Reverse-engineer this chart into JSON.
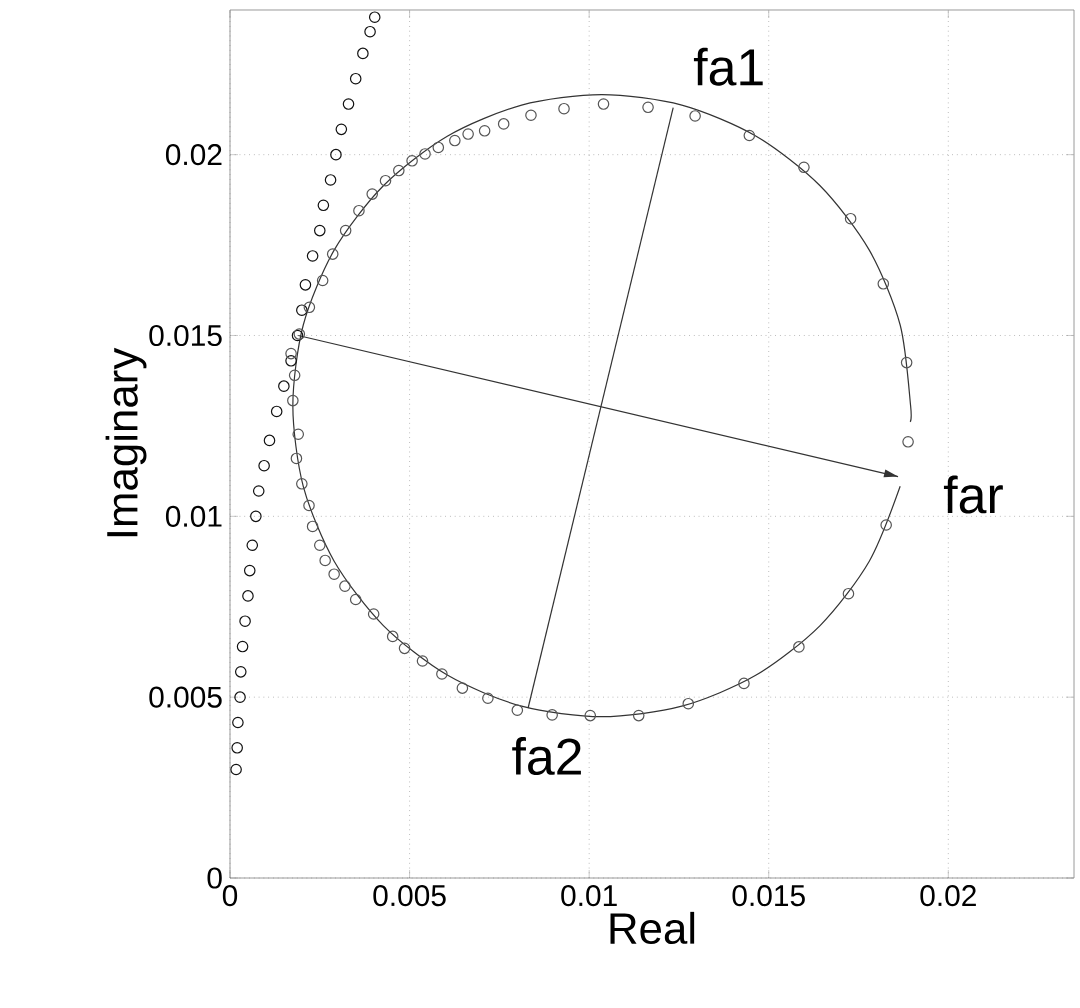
{
  "chart_data": {
    "type": "scatter",
    "xlabel": "Real",
    "ylabel": "Imaginary",
    "xlim": [
      0,
      0.0235
    ],
    "ylim": [
      0,
      0.024
    ],
    "xticks": [
      0,
      0.005,
      0.01,
      0.015,
      0.02
    ],
    "yticks": [
      0,
      0.005,
      0.01,
      0.015,
      0.02
    ],
    "grid": true,
    "series": [
      {
        "color": "#111111",
        "marker": "circle",
        "x": [
          0.00017,
          0.0002,
          0.00022,
          0.00028,
          0.0003,
          0.00035,
          0.00042,
          0.0005,
          0.00055,
          0.00062,
          0.00072,
          0.0008,
          0.00095,
          0.0011,
          0.0013,
          0.0015,
          0.0017,
          0.00188,
          0.002,
          0.0021,
          0.0023,
          0.0025,
          0.0026,
          0.0028,
          0.00295,
          0.0031,
          0.0033,
          0.0035,
          0.0037,
          0.0039,
          0.00403
        ],
        "values": [
          0.003,
          0.0036,
          0.0043,
          0.005,
          0.0057,
          0.0064,
          0.0071,
          0.0078,
          0.0085,
          0.0092,
          0.01,
          0.0107,
          0.0114,
          0.0121,
          0.0129,
          0.0136,
          0.0143,
          0.015,
          0.0157,
          0.0164,
          0.0172,
          0.0179,
          0.0186,
          0.0193,
          0.02,
          0.0207,
          0.0214,
          0.0221,
          0.0228,
          0.0234,
          0.0238
        ]
      },
      {
        "color": "#555555",
        "marker": "circle",
        "x": [
          0.0017,
          0.0018,
          0.00175,
          0.0019,
          0.00185,
          0.002,
          0.0022,
          0.0023,
          0.0025,
          0.00265,
          0.0029,
          0.0032,
          0.0035,
          0.004,
          0.00453,
          0.00486,
          0.00536,
          0.0059,
          0.00647,
          0.00718,
          0.008,
          0.00897,
          0.01003,
          0.01138,
          0.01276,
          0.01431,
          0.01584,
          0.01722,
          0.01827,
          0.01888,
          0.01884,
          0.01819,
          0.01728,
          0.01598,
          0.01446,
          0.01295,
          0.01164,
          0.0104,
          0.0093,
          0.00838,
          0.00762,
          0.00709,
          0.00663,
          0.00626,
          0.0058,
          0.00543,
          0.00507,
          0.0047,
          0.00433,
          0.00396,
          0.00359,
          0.00322,
          0.00286,
          0.00258,
          0.00221,
          0.00193
        ],
        "values": [
          0.0145,
          0.0139,
          0.0132,
          0.01227,
          0.0116,
          0.0109,
          0.0103,
          0.00972,
          0.0092,
          0.00878,
          0.0084,
          0.00807,
          0.0077,
          0.0073,
          0.00668,
          0.00635,
          0.006,
          0.00564,
          0.00525,
          0.00497,
          0.00464,
          0.00451,
          0.00449,
          0.00449,
          0.00482,
          0.00538,
          0.00639,
          0.00786,
          0.00976,
          0.01206,
          0.01425,
          0.01643,
          0.01823,
          0.01965,
          0.02053,
          0.02107,
          0.02131,
          0.0214,
          0.02127,
          0.02109,
          0.02085,
          0.02066,
          0.02057,
          0.02039,
          0.0202,
          0.02002,
          0.01983,
          0.01956,
          0.01928,
          0.01891,
          0.01845,
          0.0179,
          0.01725,
          0.01652,
          0.01578,
          0.01504
        ]
      },
      {
        "type": "line",
        "color": "#333333",
        "marker": "none",
        "line_style": "solid",
        "x": [
          0.01894,
          0.01895,
          0.01866,
          0.0178,
          0.01643,
          0.01465,
          0.01258,
          0.01035,
          0.00812,
          0.00605,
          0.00427,
          0.0029,
          0.00204,
          0.00175,
          0.00204,
          0.0029,
          0.00427,
          0.00605,
          0.00812,
          0.01035,
          0.01258,
          0.01465,
          0.01643,
          0.0178,
          0.01866
        ],
        "values": [
          0.01261,
          0.01306,
          0.01529,
          0.01736,
          0.01914,
          0.02051,
          0.02137,
          0.02166,
          0.02137,
          0.02051,
          0.01914,
          0.01736,
          0.01529,
          0.01306,
          0.01083,
          0.00876,
          0.00698,
          0.00561,
          0.00475,
          0.00446,
          0.00475,
          0.00561,
          0.00698,
          0.00876,
          0.01083
        ]
      },
      {
        "type": "line",
        "color": "#333333",
        "marker": "none",
        "line_style": "solid",
        "x": [
          0.0083,
          0.01234
        ],
        "values": [
          0.0047,
          0.0213
        ]
      },
      {
        "type": "line",
        "color": "#333333",
        "marker": "none",
        "line_style": "solid",
        "x": [
          0.0019,
          0.0186
        ],
        "values": [
          0.015,
          0.0111
        ]
      }
    ],
    "annotations": [
      "fa1",
      "fa2",
      "far"
    ]
  }
}
